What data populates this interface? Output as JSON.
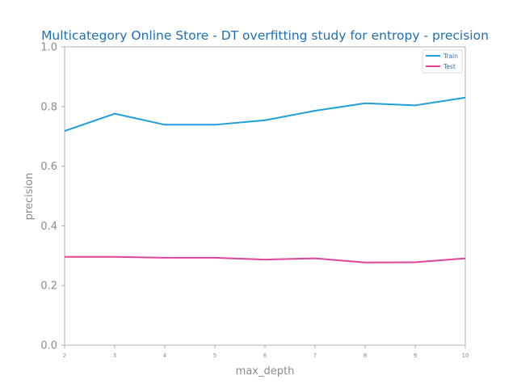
{
  "chart_data": {
    "type": "line",
    "title": "Multicategory Online Store - DT overfitting study for entropy - precision",
    "xlabel": "max_depth",
    "ylabel": "precision",
    "x": [
      2,
      3,
      4,
      5,
      6,
      7,
      8,
      9,
      10
    ],
    "xlim": [
      2,
      10
    ],
    "ylim": [
      0.0,
      1.0
    ],
    "yticks": [
      "0.0",
      "0.2",
      "0.4",
      "0.6",
      "0.8",
      "1.0"
    ],
    "xticks": [
      "2",
      "3",
      "4",
      "5",
      "6",
      "7",
      "8",
      "9",
      "10"
    ],
    "grid": false,
    "legend_position": "top-right",
    "series": [
      {
        "name": "Train",
        "color": "#1f9fd8",
        "values": [
          0.718,
          0.776,
          0.739,
          0.739,
          0.754,
          0.786,
          0.811,
          0.804,
          0.83
        ]
      },
      {
        "name": "Test",
        "color": "#e0449c",
        "values": [
          0.296,
          0.296,
          0.293,
          0.293,
          0.287,
          0.291,
          0.277,
          0.278,
          0.291
        ]
      }
    ]
  }
}
